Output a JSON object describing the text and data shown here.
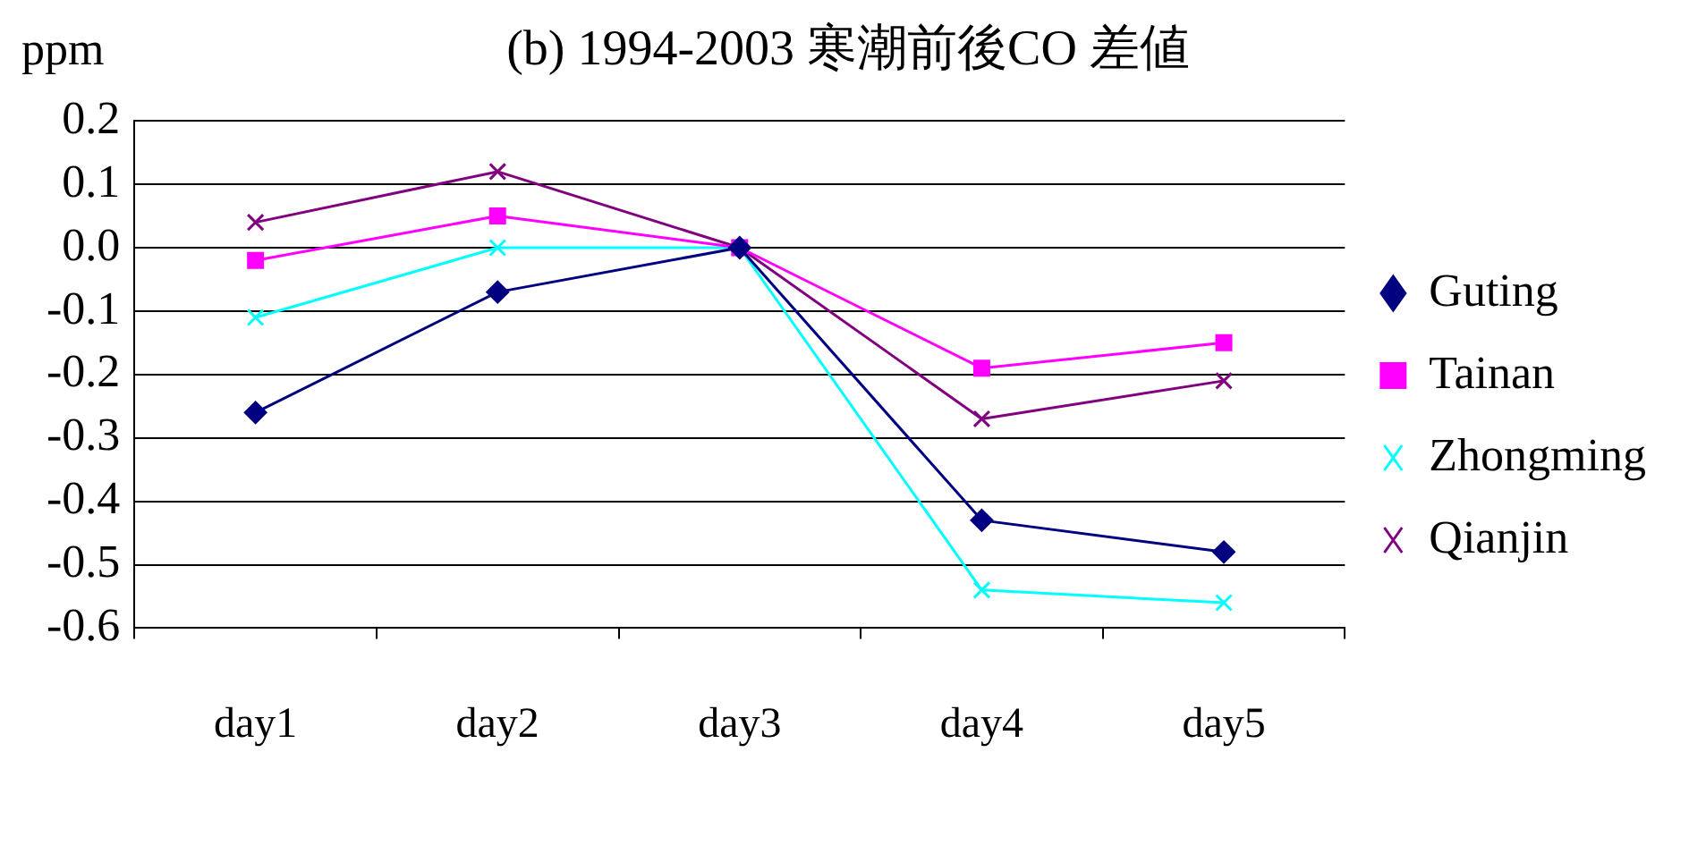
{
  "chart_data": {
    "type": "line",
    "title": "(b) 1994-2003 寒潮前後CO 差値",
    "ylabel": "ppm",
    "categories": [
      "day1",
      "day2",
      "day3",
      "day4",
      "day5"
    ],
    "series": [
      {
        "name": "Guting",
        "color": "#000080",
        "marker": "diamond",
        "values": [
          -0.26,
          -0.07,
          0,
          -0.43,
          -0.48
        ]
      },
      {
        "name": "Tainan",
        "color": "#ff00ff",
        "marker": "square",
        "values": [
          -0.02,
          0.05,
          0,
          -0.19,
          -0.15
        ]
      },
      {
        "name": "Zhongming",
        "color": "#00ffff",
        "marker": "cross",
        "values": [
          -0.11,
          0,
          0,
          -0.54,
          -0.56
        ]
      },
      {
        "name": "Qianjin",
        "color": "#800080",
        "marker": "cross",
        "values": [
          0.04,
          0.12,
          0,
          -0.27,
          -0.21
        ]
      }
    ],
    "ylim": [
      -0.6,
      0.2
    ],
    "yticks": [
      -0.6,
      -0.5,
      -0.4,
      -0.3,
      -0.2,
      -0.1,
      {
        "value": 0,
        "label": "0.0"
      },
      0.1,
      0.2
    ],
    "grid": "y",
    "legend": "right",
    "line_style": "solid"
  }
}
